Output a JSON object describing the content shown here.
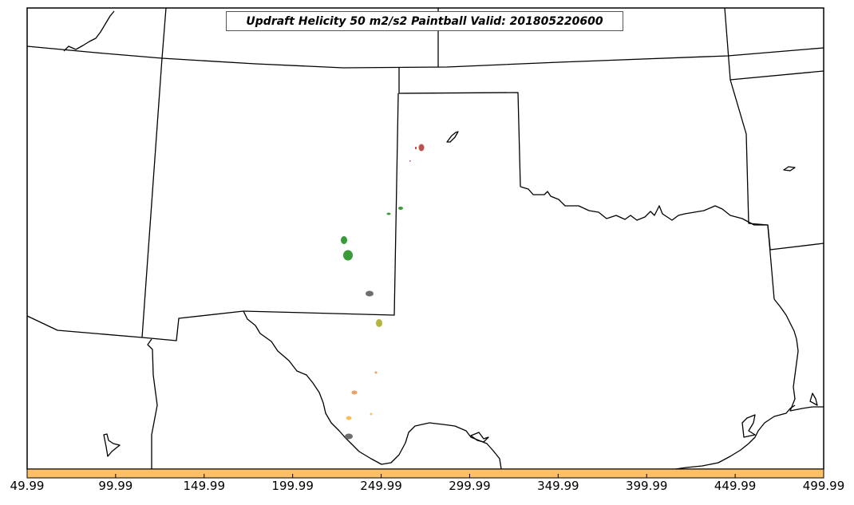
{
  "title": "Updraft Helicity 50 m2/s2 Paintball Valid: 201805220600",
  "colorbar": {
    "color": "#ffbf66",
    "ticks": [
      "49.99",
      "99.99",
      "149.99",
      "199.99",
      "249.99",
      "299.99",
      "349.99",
      "399.99",
      "449.99",
      "499.99"
    ]
  },
  "paintball_colors": {
    "red": "#c0504d",
    "green": "#3a9a3a",
    "gray": "#6e6e6e",
    "olive": "#b5b53a",
    "orange": "#f0a060",
    "yellow": "#f5c060"
  }
}
